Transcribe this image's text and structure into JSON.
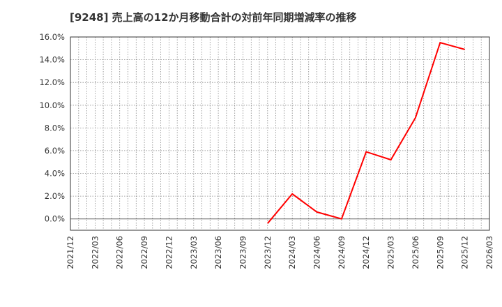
{
  "title": "[9248]  売上高の12か月移動合計の対前年同期増減率の推移",
  "colors": {
    "line": "#ff0000",
    "grid": "#888888",
    "axis": "#333333",
    "zero_line": "#666666"
  },
  "chart_data": {
    "type": "line",
    "title": "[9248]  売上高の12か月移動合計の対前年同期増減率の推移",
    "xlabel": "",
    "ylabel": "",
    "ylim": [
      -1.0,
      16.0
    ],
    "yticks": [
      "0.0%",
      "2.0%",
      "4.0%",
      "6.0%",
      "8.0%",
      "10.0%",
      "12.0%",
      "14.0%",
      "16.0%"
    ],
    "categories": [
      "2021/12",
      "2022/03",
      "2022/06",
      "2022/09",
      "2022/12",
      "2023/03",
      "2023/06",
      "2023/09",
      "2023/12",
      "2024/03",
      "2024/06",
      "2024/09",
      "2024/12",
      "2025/03",
      "2025/06",
      "2025/09",
      "2025/12",
      "2026/03"
    ],
    "grid": true,
    "legend": "none",
    "series": [
      {
        "name": "売上高の12か月移動合計の対前年同期増減率",
        "x": [
          "2023/12",
          "2024/03",
          "2024/06",
          "2024/09",
          "2024/12",
          "2025/03",
          "2025/06",
          "2025/09",
          "2025/12"
        ],
        "values": [
          -0.4,
          2.2,
          0.6,
          0.0,
          5.9,
          5.2,
          8.9,
          15.5,
          14.9
        ]
      }
    ]
  }
}
